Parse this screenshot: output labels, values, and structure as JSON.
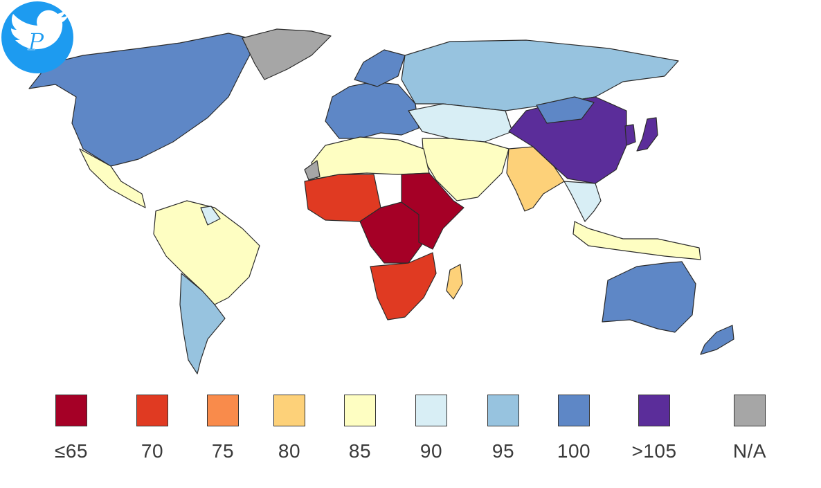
{
  "map": {
    "subject": "World map colored by average IQ by country",
    "regions": [
      {
        "name": "north-america",
        "category": "100"
      },
      {
        "name": "greenland",
        "category": "N/A"
      },
      {
        "name": "central-america",
        "category": "85"
      },
      {
        "name": "south-america",
        "category": "85"
      },
      {
        "name": "southern-cone",
        "category": "95"
      },
      {
        "name": "guyana-region",
        "category": "90"
      },
      {
        "name": "europe",
        "category": "100"
      },
      {
        "name": "scandinavia",
        "category": "100"
      },
      {
        "name": "russia",
        "category": "95"
      },
      {
        "name": "central-asia",
        "category": "90"
      },
      {
        "name": "middle-east",
        "category": "85"
      },
      {
        "name": "north-africa",
        "category": "85"
      },
      {
        "name": "western-sahara",
        "category": "N/A"
      },
      {
        "name": "west-africa",
        "category": "70"
      },
      {
        "name": "central-africa",
        "category": "≤65"
      },
      {
        "name": "east-africa",
        "category": "≤65"
      },
      {
        "name": "southern-africa",
        "category": "70"
      },
      {
        "name": "madagascar",
        "category": "80"
      },
      {
        "name": "india",
        "category": "80"
      },
      {
        "name": "china",
        "category": ">105"
      },
      {
        "name": "japan",
        "category": ">105"
      },
      {
        "name": "korea",
        "category": ">105"
      },
      {
        "name": "mongolia",
        "category": "100"
      },
      {
        "name": "southeast-asia",
        "category": "90"
      },
      {
        "name": "indonesia",
        "category": "85"
      },
      {
        "name": "australia",
        "category": "100"
      },
      {
        "name": "new-zealand",
        "category": "100"
      }
    ]
  },
  "legend": [
    {
      "label": "≤65",
      "color": "#a50026"
    },
    {
      "label": "70",
      "color": "#e03a22"
    },
    {
      "label": "75",
      "color": "#f98b4b"
    },
    {
      "label": "80",
      "color": "#fdd179"
    },
    {
      "label": "85",
      "color": "#fefec2"
    },
    {
      "label": "90",
      "color": "#d8eef5"
    },
    {
      "label": "95",
      "color": "#97c3df"
    },
    {
      "label": "100",
      "color": "#5e87c6"
    },
    {
      "label": ">105",
      "color": "#5b2d9a"
    },
    {
      "label": "N/A",
      "color": "#a6a6a6"
    }
  ],
  "badge": {
    "icon": "twitter-bird-icon",
    "monogram": "P",
    "color": "#1d9bf0"
  }
}
